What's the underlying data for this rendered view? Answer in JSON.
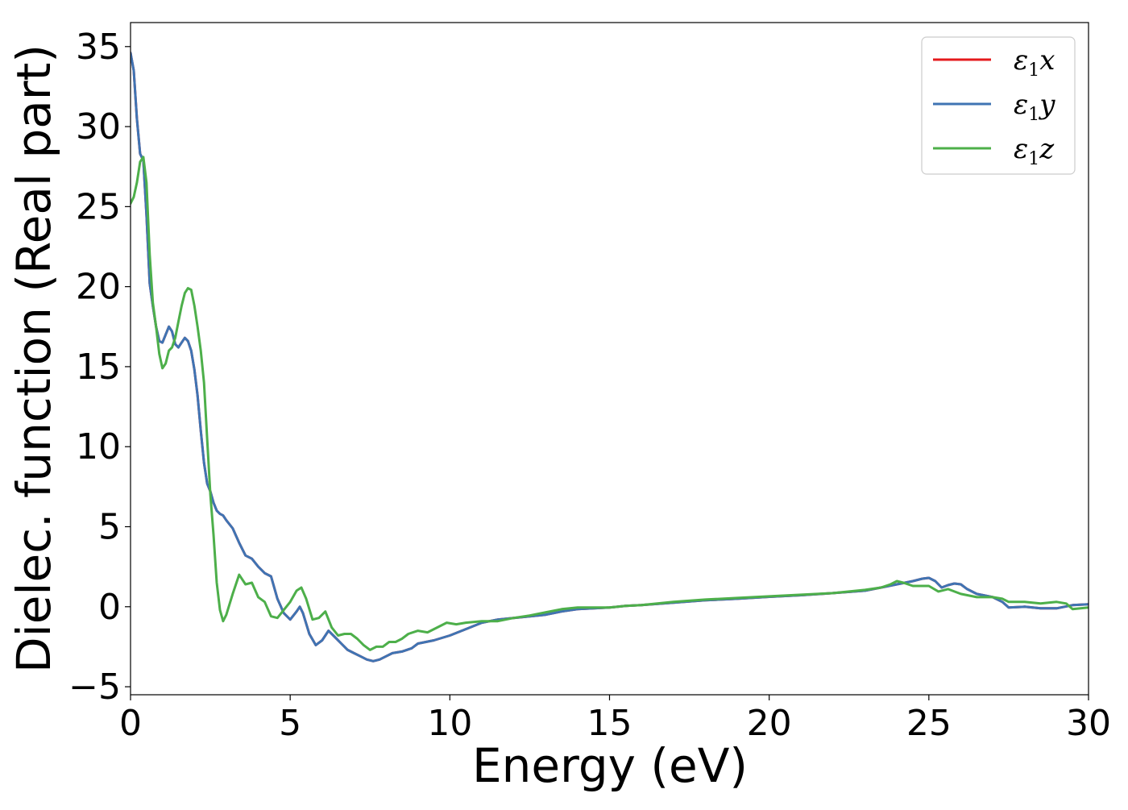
{
  "chart_data": {
    "type": "line",
    "title": "",
    "xlabel": "Energy (eV)",
    "ylabel": "Dielec. function (Real part)",
    "xlim": [
      0,
      30
    ],
    "ylim": [
      -5.5,
      36.5
    ],
    "xticks": [
      0,
      5,
      10,
      15,
      20,
      25,
      30
    ],
    "xtick_labels": [
      "0",
      "5",
      "10",
      "15",
      "20",
      "25",
      "30"
    ],
    "yticks": [
      -5,
      0,
      5,
      10,
      15,
      20,
      25,
      30,
      35
    ],
    "ytick_labels": [
      "−5",
      "0",
      "5",
      "10",
      "15",
      "20",
      "25",
      "30",
      "35"
    ],
    "grid": false,
    "legend_position": "top-right",
    "series": [
      {
        "name": "ε1x",
        "legend_symbol": "ε",
        "legend_sub": "1",
        "legend_var": "x",
        "color": "#e41a1c",
        "x": [
          0.0,
          0.1,
          0.2,
          0.3,
          0.4,
          0.5,
          0.6,
          0.7,
          0.8,
          0.9,
          1.0,
          1.1,
          1.2,
          1.3,
          1.4,
          1.5,
          1.6,
          1.7,
          1.8,
          1.9,
          2.0,
          2.1,
          2.2,
          2.3,
          2.4,
          2.5,
          2.6,
          2.7,
          2.8,
          2.9,
          3.0,
          3.2,
          3.4,
          3.6,
          3.8,
          4.0,
          4.2,
          4.4,
          4.6,
          4.8,
          5.0,
          5.2,
          5.3,
          5.4,
          5.6,
          5.8,
          6.0,
          6.1,
          6.2,
          6.4,
          6.6,
          6.8,
          7.0,
          7.2,
          7.4,
          7.6,
          7.8,
          8.0,
          8.2,
          8.5,
          8.8,
          9.0,
          9.5,
          10.0,
          10.5,
          11.0,
          11.5,
          12.0,
          12.5,
          13.0,
          13.5,
          14.0,
          14.5,
          15.0,
          15.5,
          16.0,
          17.0,
          18.0,
          19.0,
          20.0,
          21.0,
          22.0,
          23.0,
          23.5,
          24.0,
          24.5,
          24.8,
          25.0,
          25.2,
          25.4,
          25.6,
          25.8,
          26.0,
          26.2,
          26.5,
          27.0,
          27.3,
          27.5,
          28.0,
          28.5,
          29.0,
          29.5,
          30.0
        ],
        "values": [
          34.6,
          33.5,
          30.5,
          28.3,
          27.9,
          24.5,
          20.2,
          18.8,
          17.5,
          16.6,
          16.5,
          17.0,
          17.5,
          17.2,
          16.4,
          16.2,
          16.5,
          16.8,
          16.6,
          16.0,
          14.8,
          13.2,
          11.0,
          9.0,
          7.7,
          7.2,
          6.5,
          6.0,
          5.8,
          5.7,
          5.4,
          4.9,
          4.0,
          3.2,
          3.0,
          2.5,
          2.1,
          1.9,
          0.5,
          -0.4,
          -0.8,
          -0.3,
          0.0,
          -0.4,
          -1.7,
          -2.4,
          -2.1,
          -1.8,
          -1.5,
          -1.9,
          -2.3,
          -2.7,
          -2.9,
          -3.1,
          -3.3,
          -3.4,
          -3.3,
          -3.1,
          -2.9,
          -2.8,
          -2.6,
          -2.3,
          -2.1,
          -1.8,
          -1.4,
          -1.0,
          -0.8,
          -0.7,
          -0.6,
          -0.5,
          -0.3,
          -0.15,
          -0.1,
          -0.05,
          0.05,
          0.1,
          0.25,
          0.4,
          0.5,
          0.62,
          0.72,
          0.85,
          1.0,
          1.2,
          1.4,
          1.6,
          1.75,
          1.8,
          1.6,
          1.2,
          1.35,
          1.45,
          1.4,
          1.1,
          0.8,
          0.6,
          0.3,
          -0.05,
          0.0,
          -0.1,
          -0.1,
          0.1,
          0.15
        ]
      },
      {
        "name": "ε1y",
        "legend_symbol": "ε",
        "legend_sub": "1",
        "legend_var": "y",
        "color": "#3f74b3",
        "x": [
          0.0,
          0.1,
          0.2,
          0.3,
          0.4,
          0.5,
          0.6,
          0.7,
          0.8,
          0.9,
          1.0,
          1.1,
          1.2,
          1.3,
          1.4,
          1.5,
          1.6,
          1.7,
          1.8,
          1.9,
          2.0,
          2.1,
          2.2,
          2.3,
          2.4,
          2.5,
          2.6,
          2.7,
          2.8,
          2.9,
          3.0,
          3.2,
          3.4,
          3.6,
          3.8,
          4.0,
          4.2,
          4.4,
          4.6,
          4.8,
          5.0,
          5.2,
          5.3,
          5.4,
          5.6,
          5.8,
          6.0,
          6.1,
          6.2,
          6.4,
          6.6,
          6.8,
          7.0,
          7.2,
          7.4,
          7.6,
          7.8,
          8.0,
          8.2,
          8.5,
          8.8,
          9.0,
          9.5,
          10.0,
          10.5,
          11.0,
          11.5,
          12.0,
          12.5,
          13.0,
          13.5,
          14.0,
          14.5,
          15.0,
          15.5,
          16.0,
          17.0,
          18.0,
          19.0,
          20.0,
          21.0,
          22.0,
          23.0,
          23.5,
          24.0,
          24.5,
          24.8,
          25.0,
          25.2,
          25.4,
          25.6,
          25.8,
          26.0,
          26.2,
          26.5,
          27.0,
          27.3,
          27.5,
          28.0,
          28.5,
          29.0,
          29.5,
          30.0
        ],
        "values": [
          34.6,
          33.5,
          30.5,
          28.3,
          27.9,
          24.5,
          20.2,
          18.8,
          17.5,
          16.6,
          16.5,
          17.0,
          17.5,
          17.2,
          16.4,
          16.2,
          16.5,
          16.8,
          16.6,
          16.0,
          14.8,
          13.2,
          11.0,
          9.0,
          7.7,
          7.2,
          6.5,
          6.0,
          5.8,
          5.7,
          5.4,
          4.9,
          4.0,
          3.2,
          3.0,
          2.5,
          2.1,
          1.9,
          0.5,
          -0.4,
          -0.8,
          -0.3,
          0.0,
          -0.4,
          -1.7,
          -2.4,
          -2.1,
          -1.8,
          -1.5,
          -1.9,
          -2.3,
          -2.7,
          -2.9,
          -3.1,
          -3.3,
          -3.4,
          -3.3,
          -3.1,
          -2.9,
          -2.8,
          -2.6,
          -2.3,
          -2.1,
          -1.8,
          -1.4,
          -1.0,
          -0.8,
          -0.7,
          -0.6,
          -0.5,
          -0.3,
          -0.15,
          -0.1,
          -0.05,
          0.05,
          0.1,
          0.25,
          0.4,
          0.5,
          0.62,
          0.72,
          0.85,
          1.0,
          1.2,
          1.4,
          1.6,
          1.75,
          1.8,
          1.6,
          1.2,
          1.35,
          1.45,
          1.4,
          1.1,
          0.8,
          0.6,
          0.3,
          -0.05,
          0.0,
          -0.1,
          -0.1,
          0.1,
          0.15
        ]
      },
      {
        "name": "ε1z",
        "legend_symbol": "ε",
        "legend_sub": "1",
        "legend_var": "z",
        "color": "#4daf4a",
        "x": [
          0.0,
          0.1,
          0.2,
          0.3,
          0.4,
          0.5,
          0.6,
          0.7,
          0.8,
          0.9,
          1.0,
          1.1,
          1.2,
          1.3,
          1.4,
          1.5,
          1.6,
          1.7,
          1.8,
          1.9,
          2.0,
          2.1,
          2.2,
          2.3,
          2.4,
          2.5,
          2.6,
          2.7,
          2.8,
          2.9,
          3.0,
          3.2,
          3.4,
          3.6,
          3.8,
          4.0,
          4.2,
          4.4,
          4.6,
          4.8,
          5.0,
          5.2,
          5.35,
          5.5,
          5.7,
          5.9,
          6.1,
          6.3,
          6.5,
          6.7,
          6.9,
          7.1,
          7.3,
          7.5,
          7.7,
          7.9,
          8.1,
          8.3,
          8.5,
          8.7,
          9.0,
          9.3,
          9.6,
          9.9,
          10.2,
          10.5,
          11.0,
          11.5,
          12.0,
          12.5,
          13.0,
          13.5,
          14.0,
          14.5,
          15.0,
          15.5,
          16.0,
          17.0,
          18.0,
          19.0,
          20.0,
          21.0,
          22.0,
          23.0,
          23.5,
          23.8,
          24.0,
          24.2,
          24.5,
          25.0,
          25.3,
          25.6,
          26.0,
          26.5,
          27.0,
          27.3,
          27.5,
          28.0,
          28.5,
          29.0,
          29.3,
          29.5,
          30.0
        ],
        "values": [
          25.2,
          25.6,
          26.5,
          27.8,
          28.1,
          26.5,
          22.0,
          19.0,
          17.5,
          15.8,
          14.9,
          15.2,
          16.0,
          16.2,
          16.8,
          17.8,
          18.8,
          19.6,
          19.9,
          19.8,
          18.8,
          17.5,
          16.0,
          14.0,
          10.5,
          7.0,
          4.5,
          1.5,
          -0.2,
          -0.9,
          -0.5,
          0.8,
          2.0,
          1.4,
          1.5,
          0.6,
          0.3,
          -0.6,
          -0.7,
          -0.2,
          0.3,
          1.0,
          1.2,
          0.5,
          -0.8,
          -0.7,
          -0.3,
          -1.3,
          -1.8,
          -1.7,
          -1.7,
          -2.0,
          -2.4,
          -2.7,
          -2.5,
          -2.5,
          -2.2,
          -2.2,
          -2.0,
          -1.7,
          -1.5,
          -1.6,
          -1.3,
          -1.0,
          -1.1,
          -1.0,
          -0.9,
          -0.9,
          -0.7,
          -0.55,
          -0.35,
          -0.15,
          -0.05,
          -0.05,
          -0.05,
          0.05,
          0.1,
          0.3,
          0.45,
          0.55,
          0.65,
          0.75,
          0.85,
          1.05,
          1.2,
          1.4,
          1.6,
          1.5,
          1.3,
          1.3,
          0.95,
          1.1,
          0.8,
          0.6,
          0.6,
          0.5,
          0.3,
          0.3,
          0.2,
          0.3,
          0.2,
          -0.15,
          -0.05
        ]
      }
    ]
  }
}
